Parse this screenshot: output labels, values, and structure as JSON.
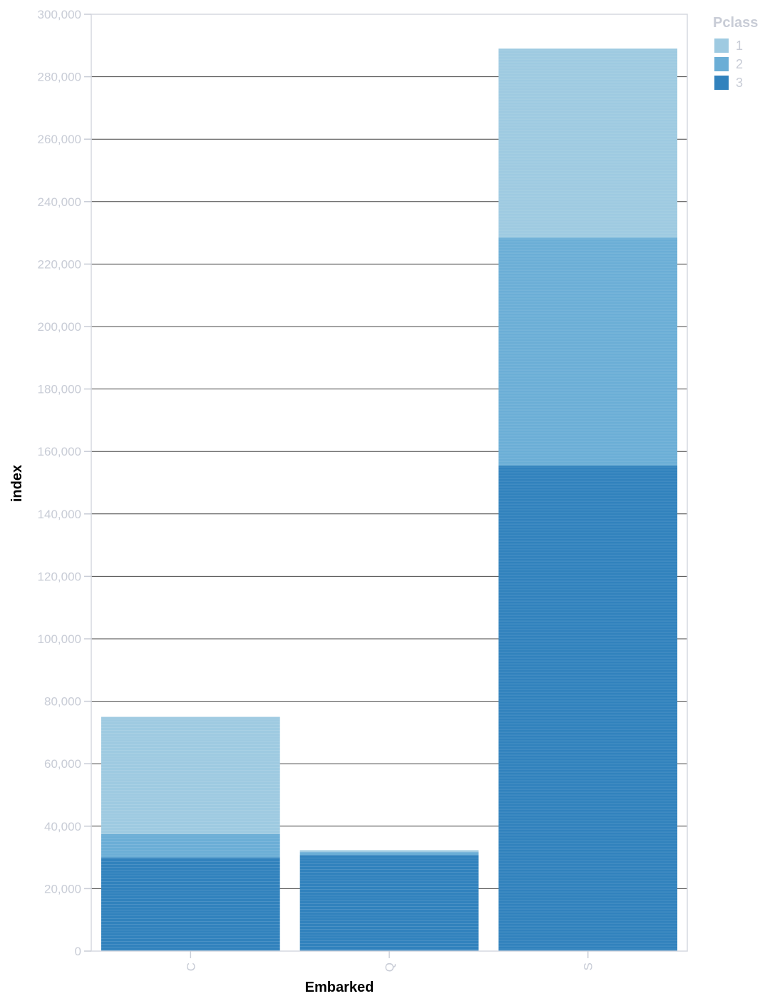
{
  "chart_data": {
    "type": "bar",
    "stacked": true,
    "categories": [
      "C",
      "Q",
      "S"
    ],
    "series": [
      {
        "name": "3",
        "color": "#3182bd",
        "values": [
          30000,
          30800,
          155500
        ]
      },
      {
        "name": "2",
        "color": "#6baed6",
        "values": [
          7500,
          1000,
          73000
        ]
      },
      {
        "name": "1",
        "color": "#9ecae1",
        "values": [
          37500,
          500,
          60500
        ]
      }
    ],
    "xlabel": "Embarked",
    "ylabel": "index",
    "ylim": [
      0,
      300000
    ],
    "yticks": [
      0,
      20000,
      40000,
      60000,
      80000,
      100000,
      120000,
      140000,
      160000,
      180000,
      200000,
      220000,
      240000,
      260000,
      280000,
      300000
    ],
    "ytick_labels": [
      "0",
      "20,000",
      "40,000",
      "60,000",
      "80,000",
      "100,000",
      "120,000",
      "140,000",
      "160,000",
      "180,000",
      "200,000",
      "220,000",
      "240,000",
      "260,000",
      "280,000",
      "300,000"
    ],
    "grid": true,
    "legend": {
      "title": "Pclass",
      "placement": "top-right",
      "entries": [
        {
          "label": "1",
          "color": "#9ecae1"
        },
        {
          "label": "2",
          "color": "#6baed6"
        },
        {
          "label": "3",
          "color": "#3182bd"
        }
      ]
    }
  }
}
